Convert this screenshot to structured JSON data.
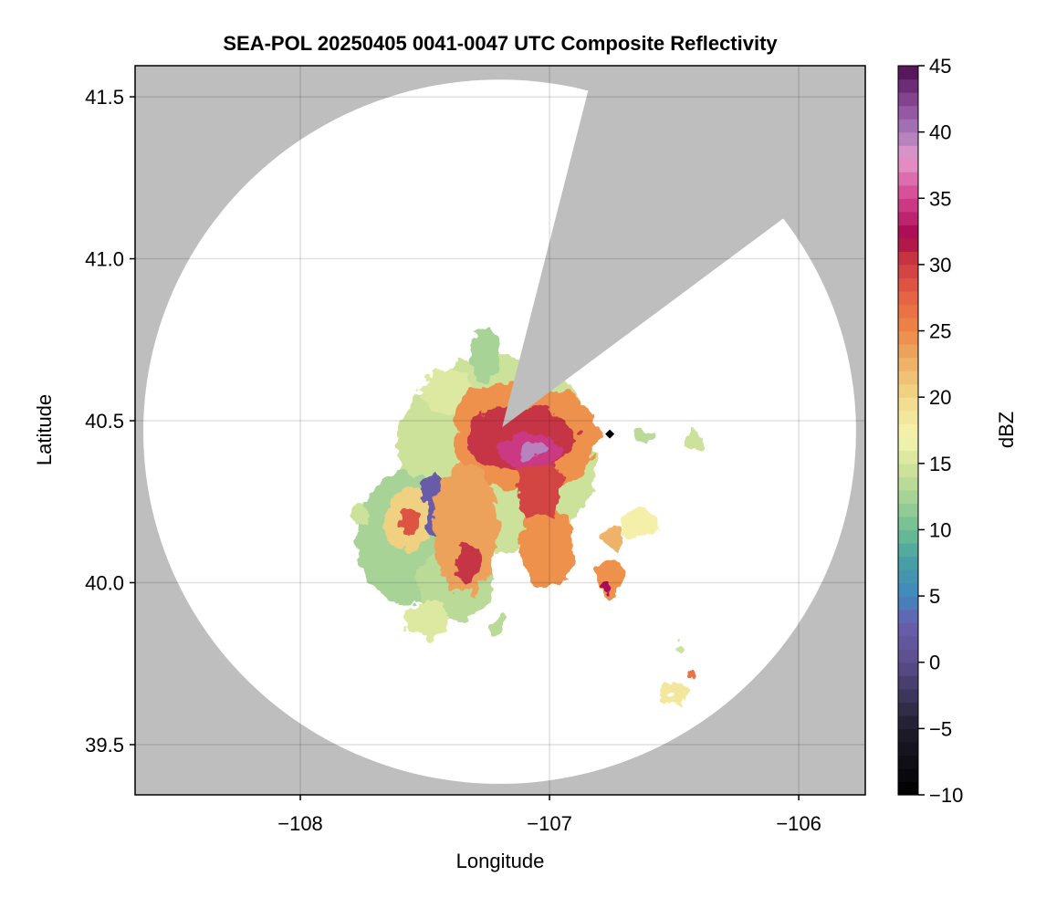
{
  "chart_data": {
    "type": "heatmap",
    "title": "SEA-POL 20250405 0041-0047 UTC Composite Reflectivity",
    "xlabel": "Longitude",
    "ylabel": "Latitude",
    "xlim": [
      -108.663,
      -105.733
    ],
    "ylim": [
      39.345,
      41.596
    ],
    "xticks": [
      -108,
      -107,
      -106
    ],
    "xtick_labels": [
      "−108",
      "−107",
      "−106"
    ],
    "yticks": [
      39.5,
      40.0,
      40.5,
      41.0,
      41.5
    ],
    "ytick_labels": [
      "39.5",
      "40.0",
      "40.5",
      "41.0",
      "41.5"
    ],
    "grid": true,
    "colorbar": {
      "label": "dBZ",
      "range": [
        -10,
        45
      ],
      "ticks": [
        -10,
        -5,
        0,
        5,
        10,
        15,
        20,
        25,
        30,
        35,
        40,
        45
      ],
      "tick_labels": [
        "−10",
        "−5",
        "0",
        "5",
        "10",
        "15",
        "20",
        "25",
        "30",
        "35",
        "40",
        "45"
      ],
      "anchors": [
        [
          -10,
          "#000000"
        ],
        [
          -5,
          "#1f1d2b"
        ],
        [
          0,
          "#5a4e8c"
        ],
        [
          3,
          "#6a5fae"
        ],
        [
          5,
          "#3f87c0"
        ],
        [
          8,
          "#4aa3a0"
        ],
        [
          10,
          "#6dbd94"
        ],
        [
          12,
          "#9ecf95"
        ],
        [
          15,
          "#d5e59a"
        ],
        [
          17,
          "#f5f5b0"
        ],
        [
          20,
          "#f1d889"
        ],
        [
          23,
          "#edab61"
        ],
        [
          25,
          "#ee8848"
        ],
        [
          28,
          "#e35d42"
        ],
        [
          31,
          "#c02c44"
        ],
        [
          32,
          "#a5054b"
        ],
        [
          35,
          "#d3428f"
        ],
        [
          38,
          "#e79acb"
        ],
        [
          40,
          "#a77ab9"
        ],
        [
          42,
          "#8f4e9c"
        ],
        [
          45,
          "#4a0c4f"
        ]
      ]
    },
    "radar": {
      "center_lon": -107.2,
      "center_lat": 40.466,
      "range_deg_lon": 1.43,
      "range_deg_lat": 1.087,
      "blocked_sector": [
        [
          -107.19,
          40.48
        ],
        [
          -106.842,
          41.528
        ],
        [
          -106.061,
          41.125
        ]
      ],
      "marker": [
        -106.758,
        40.459
      ]
    },
    "echoes": [
      [
        -107.209,
        40.393,
        0.4,
        0.31,
        14
      ],
      [
        -107.557,
        40.139,
        0.22,
        0.2,
        12
      ],
      [
        -107.374,
        39.999,
        0.15,
        0.11,
        13
      ],
      [
        -107.484,
        39.886,
        0.09,
        0.056,
        15
      ],
      [
        -107.209,
        39.872,
        0.03,
        0.023,
        13
      ],
      [
        -107.41,
        40.59,
        0.1,
        0.07,
        15
      ],
      [
        -107.264,
        40.703,
        0.055,
        0.085,
        12
      ],
      [
        -107.758,
        40.21,
        0.037,
        0.034,
        14
      ],
      [
        -107.465,
        40.238,
        0.066,
        0.1,
        2
      ],
      [
        -107.099,
        40.449,
        0.29,
        0.17,
        24
      ],
      [
        -107.227,
        40.534,
        0.15,
        0.07,
        24
      ],
      [
        -107.337,
        40.168,
        0.13,
        0.2,
        23
      ],
      [
        -107.007,
        40.111,
        0.11,
        0.13,
        24
      ],
      [
        -107.575,
        40.196,
        0.09,
        0.1,
        20
      ],
      [
        -107.557,
        40.18,
        0.037,
        0.042,
        28
      ],
      [
        -107.117,
        40.449,
        0.22,
        0.1,
        30
      ],
      [
        -107.044,
        40.308,
        0.09,
        0.11,
        29
      ],
      [
        -107.33,
        40.06,
        0.05,
        0.06,
        30
      ],
      [
        -107.081,
        40.407,
        0.13,
        0.05,
        34
      ],
      [
        -107.062,
        40.407,
        0.044,
        0.023,
        39
      ],
      [
        -106.641,
        40.18,
        0.09,
        0.042,
        17
      ],
      [
        -106.751,
        40.139,
        0.037,
        0.028,
        22
      ],
      [
        -106.751,
        40.013,
        0.055,
        0.062,
        24
      ],
      [
        -106.77,
        39.985,
        0.022,
        0.017,
        32
      ],
      [
        -106.623,
        40.449,
        0.037,
        0.02,
        13
      ],
      [
        -106.421,
        40.435,
        0.033,
        0.04,
        14
      ],
      [
        -106.495,
        39.66,
        0.044,
        0.034,
        18
      ],
      [
        -106.476,
        39.801,
        0.018,
        0.014,
        14
      ],
      [
        -106.43,
        39.71,
        0.01,
        0.008,
        26
      ]
    ]
  }
}
